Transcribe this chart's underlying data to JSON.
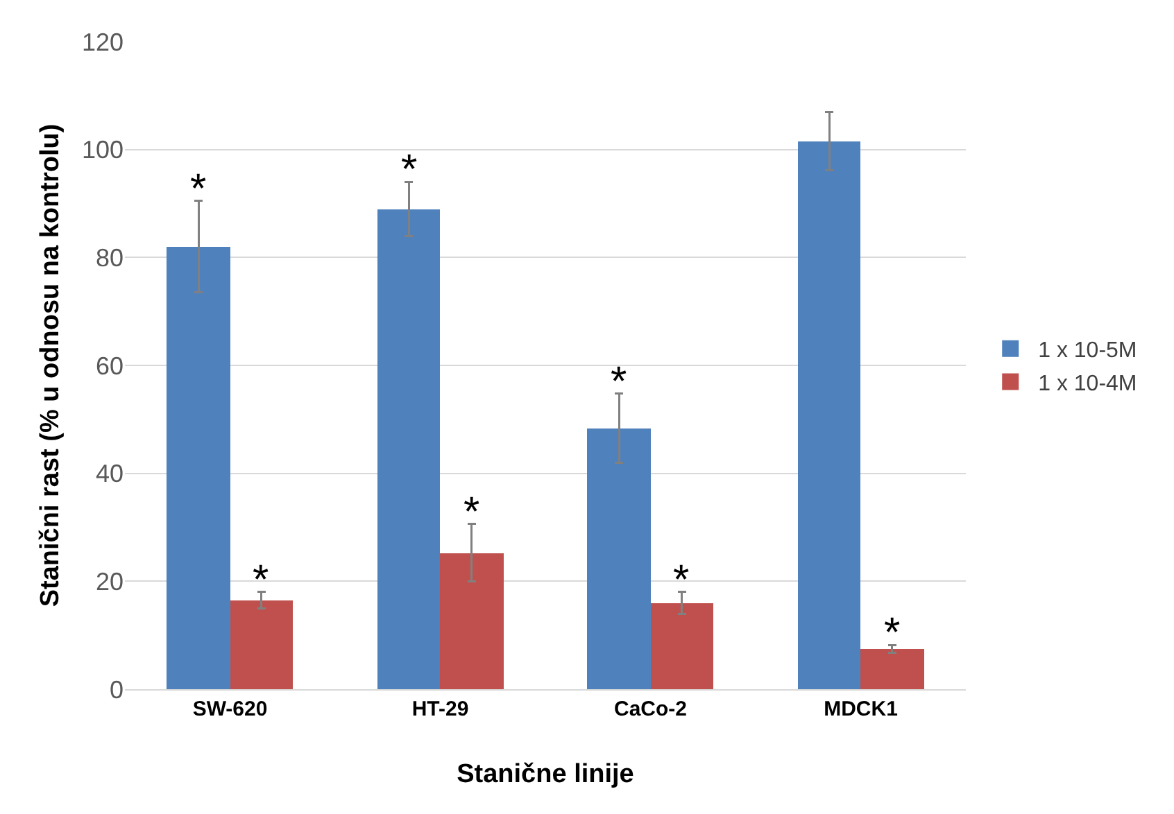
{
  "chart_data": {
    "type": "bar",
    "xlabel": "Stanične linije",
    "ylabel": "Stanični rast (% u odnosu na kontrolu)",
    "categories": [
      "SW-620",
      "HT-29",
      "CaCo-2",
      "MDCK1"
    ],
    "series": [
      {
        "name": "1 x 10-5M",
        "color": "#4f81bd",
        "values": [
          82,
          89,
          48.4,
          101.6
        ],
        "errors": [
          8.5,
          5,
          6.4,
          5.4
        ]
      },
      {
        "name": "1 x 10-4M",
        "color": "#c0504d",
        "values": [
          16.5,
          25.3,
          16,
          7.5
        ],
        "errors": [
          1.5,
          5.3,
          2,
          0.7
        ]
      }
    ],
    "ylim": [
      0,
      120
    ],
    "yticks": [
      0,
      20,
      40,
      60,
      80,
      100,
      120
    ],
    "grid": "y",
    "legend": "right",
    "annotations": [
      {
        "text": "*",
        "x": "SW-620",
        "y": 82
      },
      {
        "text": "*",
        "x": "SW-620",
        "y": 16.5
      },
      {
        "text": "*",
        "x": "HT-29",
        "y": 89
      },
      {
        "text": "*",
        "x": "HT-29",
        "y": 25.3
      },
      {
        "text": "*",
        "x": "CaCo-2",
        "y": 48.4
      },
      {
        "text": "*",
        "x": "CaCo-2",
        "y": 16
      },
      {
        "text": "*",
        "x": "MDCK1",
        "y": 7.5
      }
    ]
  }
}
